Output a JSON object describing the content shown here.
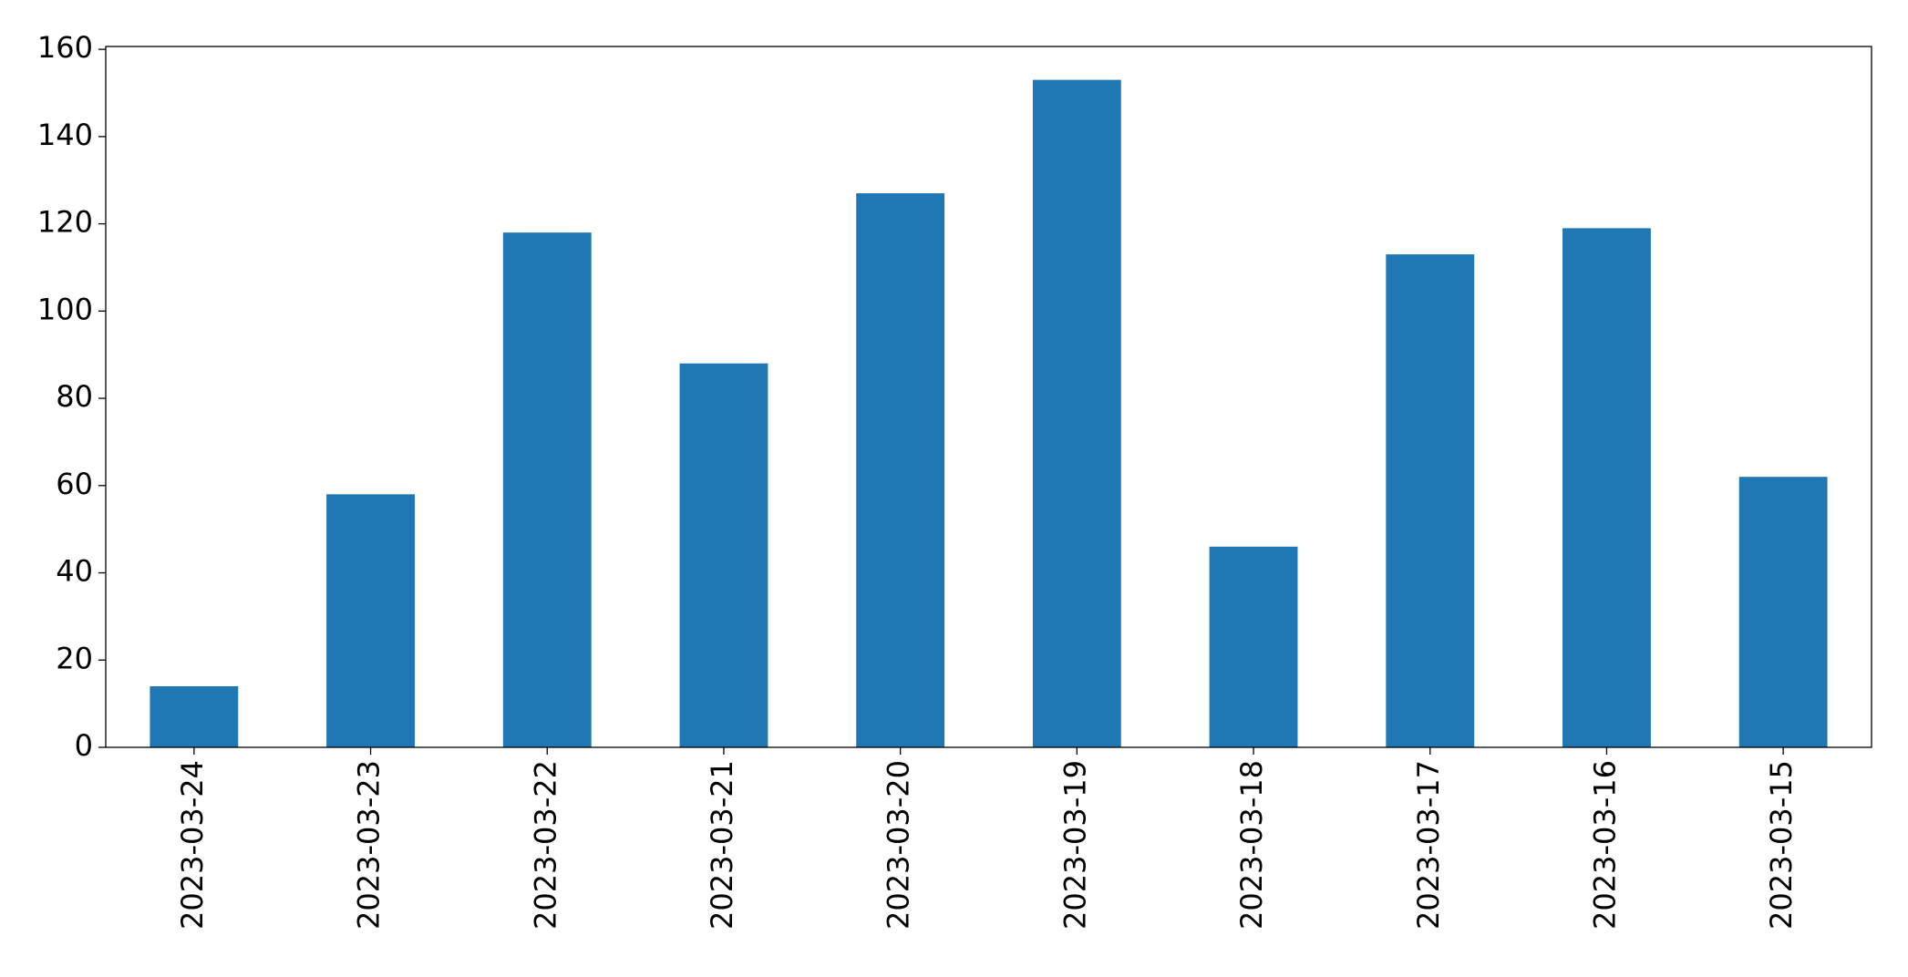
{
  "chart_data": {
    "type": "bar",
    "categories": [
      "2023-03-24",
      "2023-03-23",
      "2023-03-22",
      "2023-03-21",
      "2023-03-20",
      "2023-03-19",
      "2023-03-18",
      "2023-03-17",
      "2023-03-16",
      "2023-03-15"
    ],
    "values": [
      14,
      58,
      118,
      88,
      127,
      153,
      46,
      113,
      119,
      62
    ],
    "color": "#1f77b4",
    "ylim": [
      0,
      160.65
    ],
    "yticks": [
      0,
      20,
      40,
      60,
      80,
      100,
      120,
      140,
      160
    ],
    "grid": false
  }
}
